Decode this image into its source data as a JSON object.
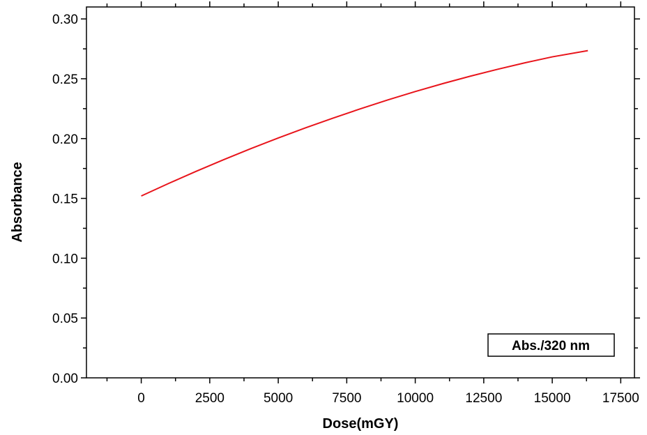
{
  "chart_data": {
    "type": "line",
    "xlabel": "Dose(mGY)",
    "ylabel": "Absorbance",
    "xlim": [
      -2000,
      18000
    ],
    "ylim": [
      0,
      0.31
    ],
    "x_ticks": [
      0,
      2500,
      5000,
      7500,
      10000,
      12500,
      15000,
      17500
    ],
    "y_ticks": [
      0.0,
      0.05,
      0.1,
      0.15,
      0.2,
      0.25,
      0.3
    ],
    "x_tick_labels": [
      "0",
      "2500",
      "5000",
      "7500",
      "10000",
      "12500",
      "15000",
      "17500"
    ],
    "y_tick_labels": [
      "0.00",
      "0.05",
      "0.10",
      "0.15",
      "0.20",
      "0.25",
      "0.30"
    ],
    "grid": false,
    "legend_position": "bottom-right",
    "series": [
      {
        "name": "Abs./320 nm",
        "color": "#e8141b",
        "x": [
          0,
          1000,
          2000,
          3000,
          4000,
          5000,
          6000,
          7000,
          8000,
          9000,
          10000,
          11000,
          12000,
          13000,
          14000,
          15000,
          16300
        ],
        "y": [
          0.152,
          0.1625,
          0.1726,
          0.1823,
          0.1916,
          0.2005,
          0.209,
          0.2171,
          0.2249,
          0.2323,
          0.2393,
          0.2459,
          0.2521,
          0.2579,
          0.2633,
          0.2683,
          0.2735
        ]
      }
    ]
  }
}
